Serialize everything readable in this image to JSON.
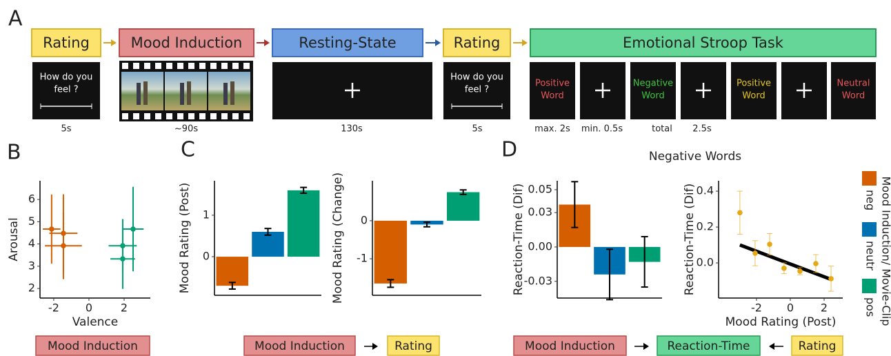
{
  "panel_labels": [
    "A",
    "B",
    "C",
    "D"
  ],
  "timeline": {
    "steps": [
      "Rating",
      "Mood Induction",
      "Resting-State",
      "Rating",
      "Emotional Stroop Task"
    ],
    "rating_screen": [
      "How do you",
      "feel ?"
    ],
    "stroop_words": [
      {
        "lines": [
          "Positive",
          "Word"
        ],
        "color": "#e8575a"
      },
      {
        "lines": [
          "Negative",
          "Word"
        ],
        "color": "#3cc43c"
      },
      {
        "lines": [
          "Positive",
          "Word"
        ],
        "color": "#e6c619"
      },
      {
        "lines": [
          "Neutral",
          "Word"
        ],
        "color": "#e8575a"
      }
    ],
    "durations": [
      "5s",
      "~90s",
      "130s",
      "5s",
      "max. 2s",
      "min. 0.5s",
      "total",
      "2.5s"
    ]
  },
  "panel_d_title": "Negative Words",
  "legend": {
    "title": "Mood Induction/ Movie-Clip",
    "entries": [
      {
        "label": "neg",
        "color": "#d55e00"
      },
      {
        "label": "neutr",
        "color": "#0072b2"
      },
      {
        "label": "pos",
        "color": "#009e73"
      }
    ]
  },
  "flows": {
    "b": [
      "Mood Induction"
    ],
    "c": [
      "Mood Induction",
      "Rating"
    ],
    "d": [
      "Mood Induction",
      "Reaction-Time",
      "Rating"
    ]
  },
  "chart_data": [
    {
      "type": "scatter",
      "x_label": "Valence",
      "y_label": "Arousal",
      "xlim": [
        -2.78,
        3.49
      ],
      "ylim": [
        1.57,
        6.84
      ],
      "xticks": [
        -2,
        0,
        2
      ],
      "yticks": [
        2,
        3,
        4,
        5,
        6
      ],
      "series": [
        {
          "color": "#d55e00",
          "x": [
            -2.12,
            -1.45,
            -1.45
          ],
          "values": [
            4.67,
            4.48,
            3.92
          ],
          "xerr": [
            0.5,
            0.8,
            1.05
          ],
          "yerr": [
            1.55,
            1.75,
            1.5
          ]
        },
        {
          "color": "#009e73",
          "x": [
            1.92,
            1.92,
            2.51
          ],
          "values": [
            3.92,
            3.33,
            4.67
          ],
          "xerr": [
            0.8,
            0.7,
            0.6
          ],
          "yerr": [
            1.2,
            1.35,
            1.9
          ]
        }
      ]
    },
    {
      "type": "bar",
      "y_label": "Mood Rating (Post)",
      "ylim": [
        -0.93,
        1.83
      ],
      "yticks": [
        0,
        1
      ],
      "categories": [
        null,
        null,
        null
      ],
      "values": [
        -0.7,
        0.6,
        1.6
      ],
      "errors": [
        0.08,
        0.08,
        0.07
      ],
      "colors": [
        "#d55e00",
        "#0072b2",
        "#009e73"
      ]
    },
    {
      "type": "bar",
      "y_label": "Mood Rating (Change)",
      "ylim": [
        -1.96,
        1.05
      ],
      "yticks": [
        -1,
        0
      ],
      "categories": [
        null,
        null,
        null
      ],
      "values": [
        -1.65,
        -0.1,
        0.75
      ],
      "errors": [
        0.1,
        0.06,
        0.06
      ],
      "colors": [
        "#d55e00",
        "#0072b2",
        "#009e73"
      ]
    },
    {
      "type": "bar",
      "y_label": "Reaction-Time (Dif)",
      "ylim": [
        -0.0446,
        0.0578
      ],
      "yticks": [
        -0.03,
        {
          "value": 0,
          "label": "0.00"
        },
        0.03,
        0.05
      ],
      "categories": [
        null,
        null,
        null
      ],
      "values": [
        0.037,
        -0.024,
        -0.013
      ],
      "errors": [
        0.02,
        0.022,
        0.022
      ],
      "colors": [
        "#d55e00",
        "#0072b2",
        "#009e73"
      ]
    },
    {
      "type": "scatter",
      "x_label": "Mood Rating (Post)",
      "y_label": "Reaction-Time (Dif)",
      "xlim": [
        -4.24,
        3.1
      ],
      "ylim": [
        -0.196,
        0.458
      ],
      "xticks": [
        -2,
        0,
        2
      ],
      "yticks": [
        {
          "value": 0,
          "label": "0.0"
        },
        0.2,
        0.4
      ],
      "series": [
        {
          "color": "#e6a817",
          "x": [
            -2.98,
            -2.08,
            -1.22,
            -0.37,
            0.57,
            1.51,
            2.41
          ],
          "values": [
            0.28,
            0.054,
            0.104,
            -0.03,
            -0.046,
            -0.004,
            -0.088
          ],
          "yerr": [
            0.12,
            0.07,
            0.06,
            0.03,
            0.02,
            0.05,
            0.07
          ]
        }
      ],
      "trend_line": {
        "color": "#000000",
        "x": [
          -2.98,
          2.41
        ],
        "values": [
          0.1,
          -0.092
        ]
      }
    }
  ]
}
